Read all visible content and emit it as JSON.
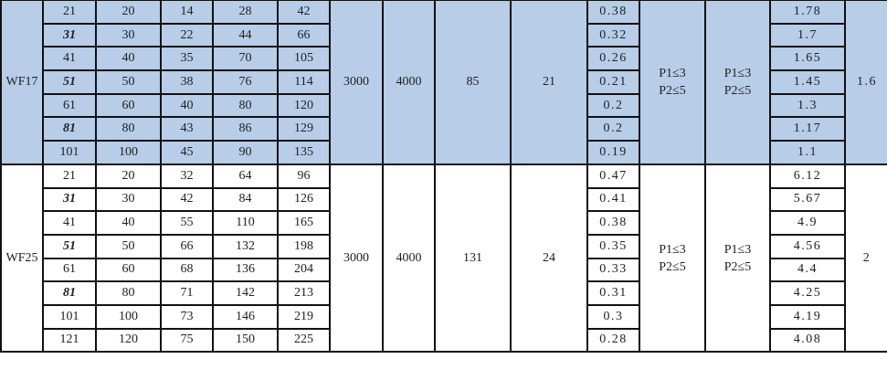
{
  "colors": {
    "group_blue": "#b7cde8",
    "group_white": "#ffffff",
    "border": "#111111"
  },
  "groups": [
    {
      "model": "WF17",
      "style": "blue",
      "col6": "3000",
      "col7": "4000",
      "col8": "85",
      "col9": "21",
      "col11": "P1≤3\nP2≤5",
      "col12": "P1≤3\nP2≤5",
      "col14": "1.6",
      "rows": [
        {
          "ratio": "21",
          "emph": false,
          "c2": "20",
          "c3": "14",
          "c4": "28",
          "c5": "42",
          "c10": "0.38",
          "c13": "1.78"
        },
        {
          "ratio": "31",
          "emph": true,
          "c2": "30",
          "c3": "22",
          "c4": "44",
          "c5": "66",
          "c10": "0.32",
          "c13": "1.7"
        },
        {
          "ratio": "41",
          "emph": false,
          "c2": "40",
          "c3": "35",
          "c4": "70",
          "c5": "105",
          "c10": "0.26",
          "c13": "1.65"
        },
        {
          "ratio": "51",
          "emph": true,
          "c2": "50",
          "c3": "38",
          "c4": "76",
          "c5": "114",
          "c10": "0.21",
          "c13": "1.45"
        },
        {
          "ratio": "61",
          "emph": false,
          "c2": "60",
          "c3": "40",
          "c4": "80",
          "c5": "120",
          "c10": "0.2",
          "c13": "1.3"
        },
        {
          "ratio": "81",
          "emph": true,
          "c2": "80",
          "c3": "43",
          "c4": "86",
          "c5": "129",
          "c10": "0.2",
          "c13": "1.17"
        },
        {
          "ratio": "101",
          "emph": false,
          "c2": "100",
          "c3": "45",
          "c4": "90",
          "c5": "135",
          "c10": "0.19",
          "c13": "1.1"
        }
      ]
    },
    {
      "model": "WF25",
      "style": "white",
      "col6": "3000",
      "col7": "4000",
      "col8": "131",
      "col9": "24",
      "col11": "P1≤3\nP2≤5",
      "col12": "P1≤3\nP2≤5",
      "col14": "2",
      "rows": [
        {
          "ratio": "21",
          "emph": false,
          "c2": "20",
          "c3": "32",
          "c4": "64",
          "c5": "96",
          "c10": "0.47",
          "c13": "6.12"
        },
        {
          "ratio": "31",
          "emph": true,
          "c2": "30",
          "c3": "42",
          "c4": "84",
          "c5": "126",
          "c10": "0.41",
          "c13": "5.67"
        },
        {
          "ratio": "41",
          "emph": false,
          "c2": "40",
          "c3": "55",
          "c4": "110",
          "c5": "165",
          "c10": "0.38",
          "c13": "4.9"
        },
        {
          "ratio": "51",
          "emph": true,
          "c2": "50",
          "c3": "66",
          "c4": "132",
          "c5": "198",
          "c10": "0.35",
          "c13": "4.56"
        },
        {
          "ratio": "61",
          "emph": false,
          "c2": "60",
          "c3": "68",
          "c4": "136",
          "c5": "204",
          "c10": "0.33",
          "c13": "4.4"
        },
        {
          "ratio": "81",
          "emph": true,
          "c2": "80",
          "c3": "71",
          "c4": "142",
          "c5": "213",
          "c10": "0.31",
          "c13": "4.25"
        },
        {
          "ratio": "101",
          "emph": false,
          "c2": "100",
          "c3": "73",
          "c4": "146",
          "c5": "219",
          "c10": "0.3",
          "c13": "4.19"
        },
        {
          "ratio": "121",
          "emph": false,
          "c2": "120",
          "c3": "75",
          "c4": "150",
          "c5": "225",
          "c10": "0.28",
          "c13": "4.08"
        }
      ]
    }
  ]
}
